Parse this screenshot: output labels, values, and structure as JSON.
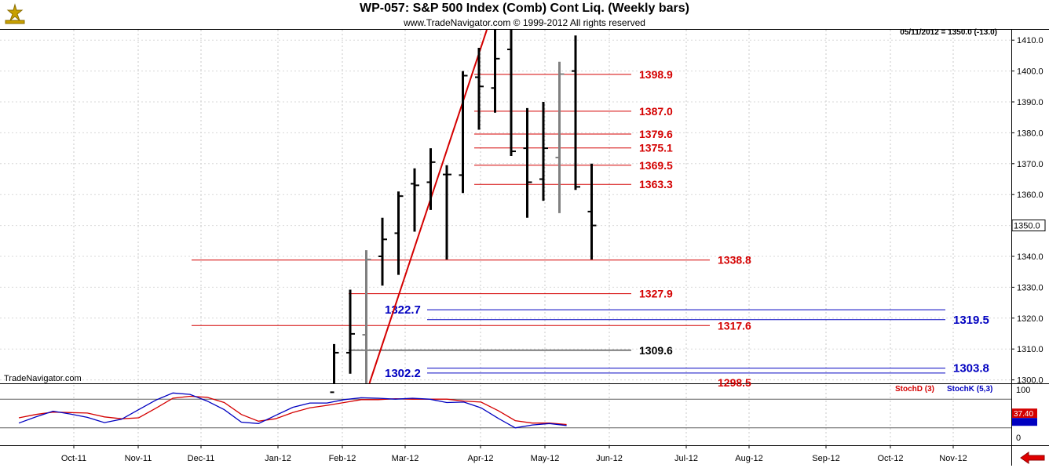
{
  "header": {
    "title": "WP-057:  S&P 500 Index (Comb) Cont Liq.  (Weekly bars)",
    "subtitle": "www.TradeNavigator.com © 1999-2012 All rights reserved",
    "last_bar": "05/11/2012 = 1350.0 (-13.0)",
    "brand": "TradeNavigator.com"
  },
  "chart_data": [
    {
      "type": "ohlc",
      "title": "WP-057:  S&P 500 Index (Comb) Cont Liq.  (Weekly bars)",
      "ylim": [
        1296,
        1414
      ],
      "y_ticks": [
        1300.0,
        1310.0,
        1320.0,
        1330.0,
        1340.0,
        1350.0,
        1360.0,
        1370.0,
        1380.0,
        1390.0,
        1400.0,
        1410.0
      ],
      "x_ticks": [
        "Oct-11",
        "Nov-11",
        "Dec-11",
        "Jan-12",
        "Feb-12",
        "Mar-12",
        "Apr-12",
        "May-12",
        "Jun-12",
        "Jul-12",
        "Aug-12",
        "Sep-12",
        "Oct-12",
        "Nov-12"
      ],
      "last_price": "1350.0",
      "bars": [
        {
          "week": 0,
          "open": 1296,
          "high": 1296,
          "low": 1296,
          "close": 1296
        },
        {
          "week": 1,
          "open": 1296,
          "high": 1311.6,
          "low": 1296,
          "close": 1308.8
        },
        {
          "week": 2,
          "open": 1308.8,
          "high": 1329.2,
          "low": 1302.0,
          "close": 1314.9
        },
        {
          "week": 3,
          "open": 1314.6,
          "high": 1342.0,
          "low": 1296,
          "close": 1339.0,
          "color": "#808080"
        },
        {
          "week": 4,
          "open": 1340.0,
          "high": 1352.5,
          "low": 1330.5,
          "close": 1345.5
        },
        {
          "week": 5,
          "open": 1347.5,
          "high": 1361.0,
          "low": 1334.0,
          "close": 1359.5
        },
        {
          "week": 6,
          "open": 1363.5,
          "high": 1368.5,
          "low": 1348.0,
          "close": 1363.0
        },
        {
          "week": 7,
          "open": 1364.0,
          "high": 1375.0,
          "low": 1355.0,
          "close": 1370.5
        },
        {
          "week": 8,
          "open": 1366.5,
          "high": 1369.5,
          "low": 1339.0,
          "close": 1366.5
        },
        {
          "week": 9,
          "open": 1366.3,
          "high": 1400.0,
          "low": 1360.5,
          "close": 1398.5
        },
        {
          "week": 10,
          "open": 1398.0,
          "high": 1407.5,
          "low": 1381.0,
          "close": 1395.0
        },
        {
          "week": 11,
          "open": 1394.5,
          "high": 1414.0,
          "low": 1386.5,
          "close": 1404.0
        },
        {
          "week": 12,
          "open": 1407.0,
          "high": 1414.0,
          "low": 1372.5,
          "close": 1374.0
        },
        {
          "week": 13,
          "open": 1375.0,
          "high": 1388.0,
          "low": 1352.5,
          "close": 1364.0
        },
        {
          "week": 14,
          "open": 1365.0,
          "high": 1390.0,
          "low": 1358.0,
          "close": 1375.0
        },
        {
          "week": 15,
          "open": 1372.0,
          "high": 1403.0,
          "low": 1354.0,
          "close": 1399.0,
          "color": "#808080"
        },
        {
          "week": 16,
          "open": 1400.0,
          "high": 1411.5,
          "low": 1361.5,
          "close": 1362.5
        },
        {
          "week": 17,
          "open": 1354.5,
          "high": 1370.0,
          "low": 1339.0,
          "close": 1350.0
        }
      ],
      "levels": [
        {
          "value": 1398.9,
          "label": "1398.9",
          "color": "#d40000"
        },
        {
          "value": 1387.0,
          "label": "1387.0",
          "color": "#d40000"
        },
        {
          "value": 1379.6,
          "label": "1379.6",
          "color": "#d40000"
        },
        {
          "value": 1375.1,
          "label": "1375.1",
          "color": "#d40000"
        },
        {
          "value": 1369.5,
          "label": "1369.5",
          "color": "#d40000"
        },
        {
          "value": 1363.3,
          "label": "1363.3",
          "color": "#d40000"
        },
        {
          "value": 1338.8,
          "label": "1338.8",
          "color": "#d40000"
        },
        {
          "value": 1327.9,
          "label": "1327.9",
          "color": "#d40000"
        },
        {
          "value": 1317.6,
          "label": "1317.6",
          "color": "#d40000"
        },
        {
          "value": 1309.6,
          "label": "1309.6",
          "color": "#000000"
        },
        {
          "value": 1298.5,
          "label": "1298.5",
          "color": "#d40000"
        },
        {
          "value": 1322.7,
          "label": "1322.7",
          "color": "#0000c0"
        },
        {
          "value": 1319.5,
          "label": "1319.5",
          "color": "#0000c0"
        },
        {
          "value": 1302.2,
          "label": "1302.2",
          "color": "#0000c0"
        },
        {
          "value": 1303.8,
          "label": "1303.8",
          "color": "#0000c0"
        }
      ],
      "trendline": {
        "color": "#d40000",
        "from": {
          "week": 3,
          "value": 1296
        },
        "to": {
          "week": 10,
          "value": 1414
        }
      }
    },
    {
      "type": "line",
      "title": "Stochastic",
      "ylim": [
        0,
        100
      ],
      "y_ticks": [
        0,
        50,
        100
      ],
      "levels": [
        80,
        20
      ],
      "series": [
        {
          "name": "StochD (3)",
          "color": "#d40000",
          "values": [
            41,
            48,
            53,
            52,
            51,
            43,
            39,
            41,
            61,
            82,
            86,
            84,
            73,
            48,
            34,
            39,
            52,
            62,
            67,
            73,
            79,
            79,
            81,
            80,
            80,
            80,
            76,
            74,
            56,
            35,
            30,
            30,
            27
          ]
        },
        {
          "name": "StochK (5,3)",
          "color": "#0000c0",
          "values": [
            30,
            43,
            55,
            49,
            42,
            31,
            38,
            58,
            78,
            93,
            90,
            76,
            58,
            32,
            29,
            46,
            63,
            72,
            72,
            79,
            83,
            82,
            80,
            82,
            80,
            73,
            74,
            62,
            40,
            20,
            26,
            29,
            25
          ]
        },
        {
          "name": "",
          "color": "#c04040",
          "values": []
        }
      ],
      "legend": [
        "StochD (3)",
        "StochK (5,3)"
      ],
      "last_value": "37.40"
    }
  ]
}
